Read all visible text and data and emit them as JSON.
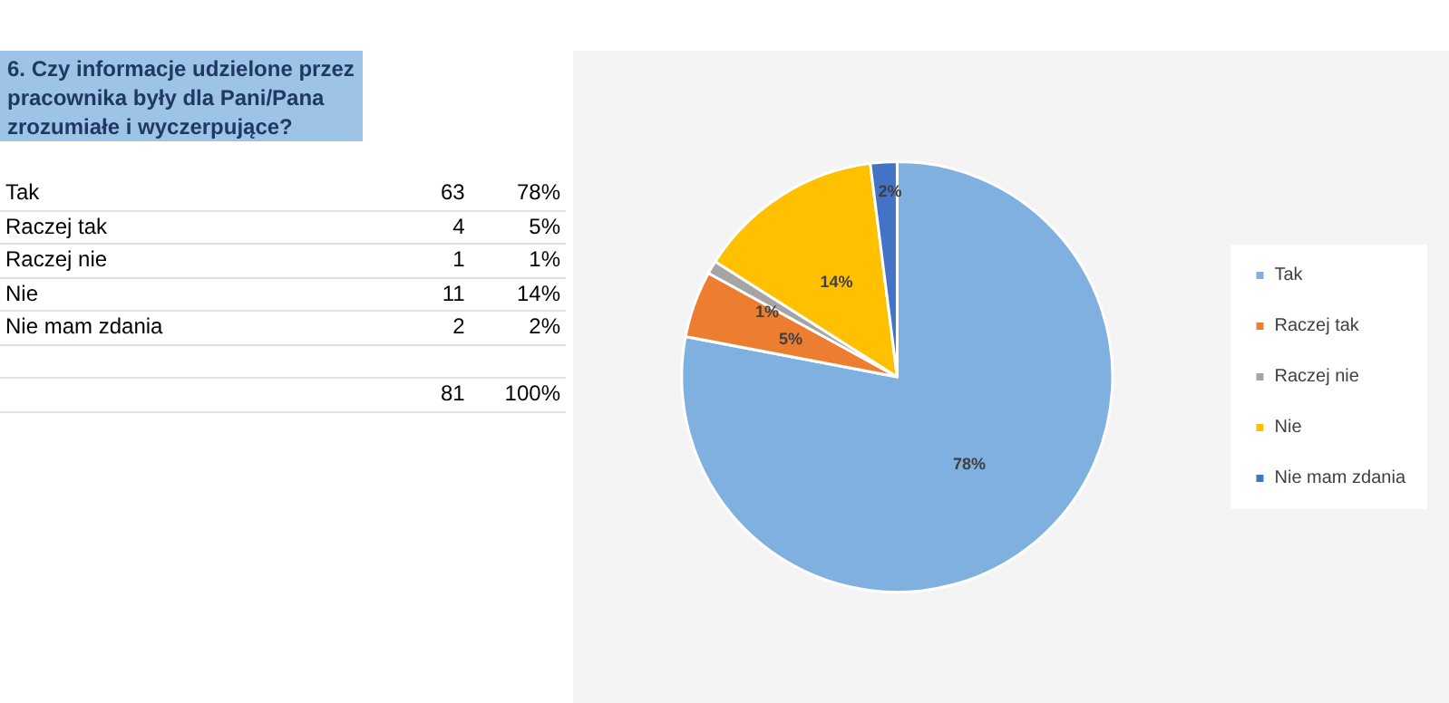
{
  "chart_data": {
    "type": "pie",
    "title": "6. Czy informacje udzielone przez pracownika były dla Pani/Pana zrozumiałe i wyczerpujące?",
    "categories": [
      "Tak",
      "Raczej tak",
      "Raczej nie",
      "Nie",
      "Nie mam zdania"
    ],
    "values": [
      78,
      5,
      1,
      14,
      2
    ],
    "value_labels": [
      "78%",
      "5%",
      "1%",
      "14%",
      "2%"
    ],
    "colors": [
      "#7fb0e0",
      "#ed7d31",
      "#a5a5a5",
      "#ffc000",
      "#4472c4"
    ],
    "annotations": [
      "63",
      "4",
      "1",
      "11",
      "2",
      "81",
      "100%"
    ],
    "legend": "right"
  }
}
